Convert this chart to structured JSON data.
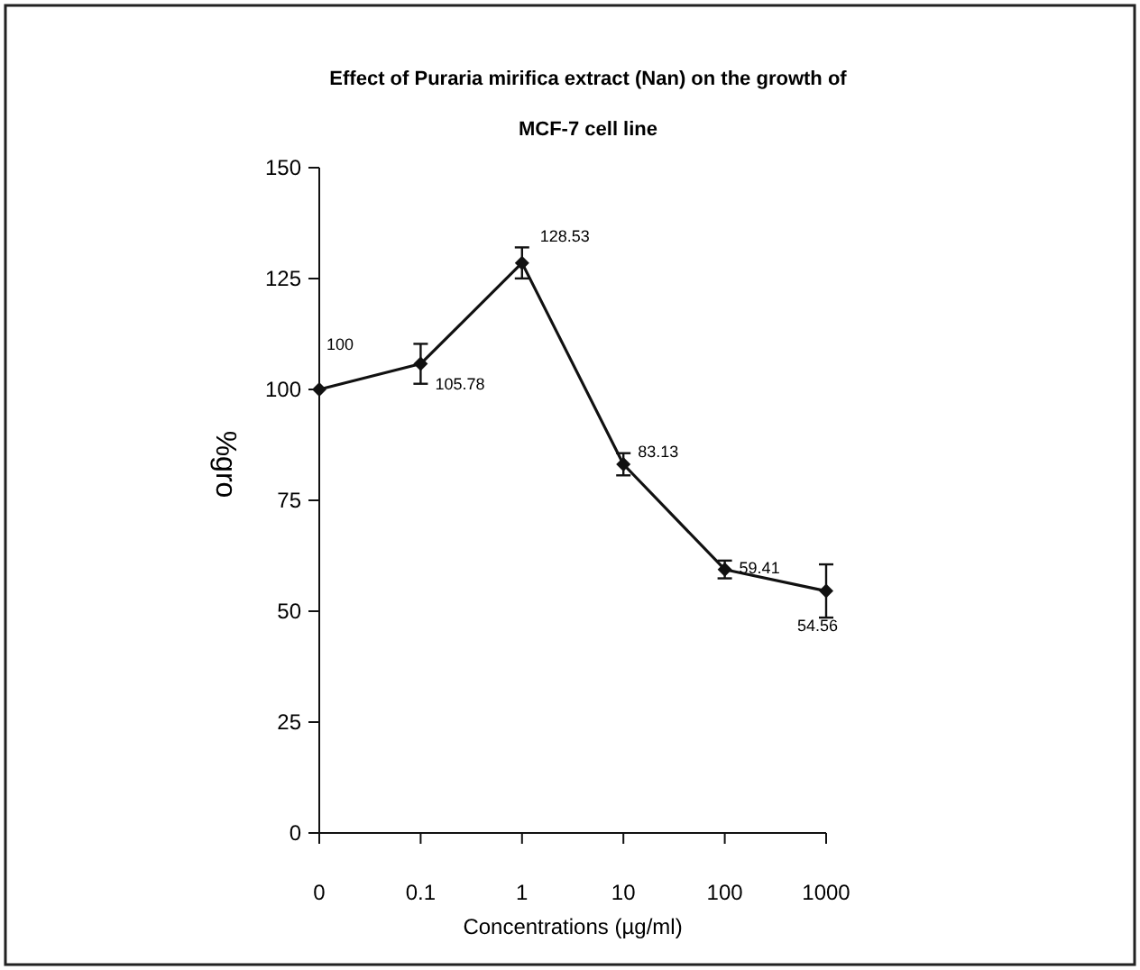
{
  "chart_data": {
    "type": "line",
    "title": "Effect of Puraria mirifica extract (Nan) on the growth of",
    "subtitle": "MCF-7 cell line",
    "xlabel": "Concentrations (µg/ml)",
    "ylabel": "%gro",
    "categories": [
      "0",
      "0.1",
      "1",
      "10",
      "100",
      "1000"
    ],
    "series": [
      {
        "color": "#111111",
        "values": [
          100,
          105.78,
          128.53,
          83.13,
          59.41,
          54.56
        ],
        "errors": [
          null,
          4.5,
          3.5,
          2.5,
          2,
          6
        ]
      }
    ],
    "ylim": [
      0,
      150
    ],
    "yticks": [
      0,
      25,
      50,
      75,
      100,
      125,
      150
    ],
    "data_labels": true,
    "marker": "diamond",
    "line_style": "solid"
  }
}
